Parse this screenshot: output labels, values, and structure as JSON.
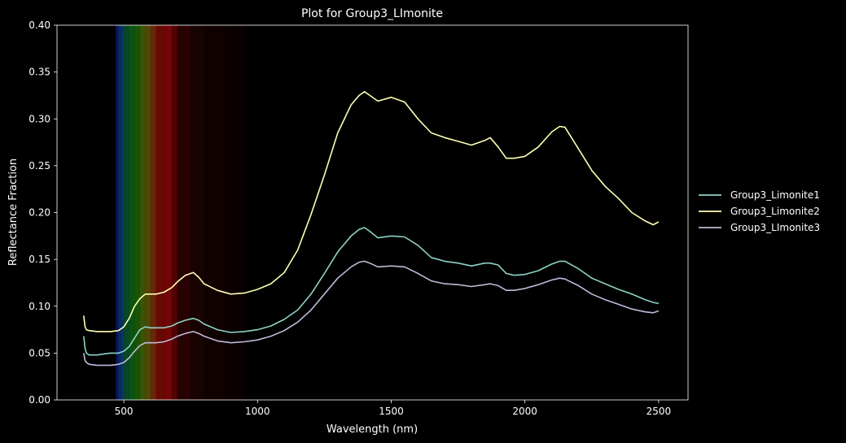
{
  "chart_data": {
    "type": "line",
    "title": "Plot for Group3_LImonite",
    "xlabel": "Wavelength (nm)",
    "ylabel": "Reflectance Fraction",
    "xlim": [
      250,
      2610
    ],
    "ylim": [
      0,
      0.4
    ],
    "xticks": [
      500,
      1000,
      1500,
      2000,
      2500
    ],
    "yticks": [
      0.0,
      0.05,
      0.1,
      0.15,
      0.2,
      0.25,
      0.3,
      0.35,
      0.4
    ],
    "grid": false,
    "legend_position": "right-outside",
    "background": "#000000",
    "spectrum_band": {
      "range_nm": [
        470,
        950
      ],
      "visible": true
    },
    "series": [
      {
        "name": "Group3_Limonite1",
        "color": "#8dd3c7",
        "x": [
          350,
          355,
          360,
          370,
          400,
          450,
          480,
          500,
          520,
          540,
          560,
          580,
          600,
          620,
          650,
          680,
          700,
          730,
          760,
          780,
          800,
          850,
          900,
          950,
          1000,
          1050,
          1100,
          1150,
          1200,
          1250,
          1300,
          1350,
          1380,
          1400,
          1420,
          1450,
          1500,
          1550,
          1600,
          1650,
          1700,
          1750,
          1800,
          1850,
          1870,
          1900,
          1930,
          1960,
          2000,
          2050,
          2100,
          2130,
          2150,
          2200,
          2250,
          2300,
          2350,
          2400,
          2450,
          2480,
          2500
        ],
        "values": [
          0.068,
          0.055,
          0.05,
          0.048,
          0.048,
          0.05,
          0.05,
          0.052,
          0.057,
          0.066,
          0.075,
          0.078,
          0.077,
          0.077,
          0.077,
          0.079,
          0.082,
          0.085,
          0.087,
          0.085,
          0.081,
          0.075,
          0.072,
          0.073,
          0.075,
          0.079,
          0.086,
          0.096,
          0.113,
          0.135,
          0.158,
          0.175,
          0.182,
          0.184,
          0.18,
          0.173,
          0.175,
          0.174,
          0.165,
          0.152,
          0.148,
          0.146,
          0.143,
          0.146,
          0.146,
          0.144,
          0.135,
          0.133,
          0.134,
          0.138,
          0.145,
          0.148,
          0.148,
          0.14,
          0.13,
          0.124,
          0.118,
          0.113,
          0.107,
          0.104,
          0.103
        ]
      },
      {
        "name": "Group3_Limonite2",
        "color": "#ffffb3",
        "x": [
          350,
          355,
          360,
          370,
          400,
          450,
          480,
          500,
          520,
          540,
          560,
          580,
          600,
          620,
          650,
          680,
          700,
          730,
          760,
          780,
          800,
          850,
          900,
          950,
          1000,
          1050,
          1100,
          1150,
          1200,
          1250,
          1300,
          1350,
          1380,
          1400,
          1420,
          1450,
          1500,
          1550,
          1600,
          1650,
          1700,
          1750,
          1800,
          1850,
          1870,
          1900,
          1930,
          1960,
          2000,
          2050,
          2100,
          2130,
          2150,
          2200,
          2250,
          2300,
          2350,
          2400,
          2450,
          2480,
          2500
        ],
        "values": [
          0.09,
          0.078,
          0.075,
          0.074,
          0.073,
          0.073,
          0.074,
          0.078,
          0.087,
          0.1,
          0.108,
          0.113,
          0.113,
          0.113,
          0.115,
          0.12,
          0.126,
          0.133,
          0.136,
          0.131,
          0.124,
          0.117,
          0.113,
          0.114,
          0.118,
          0.124,
          0.136,
          0.16,
          0.198,
          0.24,
          0.285,
          0.315,
          0.325,
          0.329,
          0.325,
          0.319,
          0.323,
          0.318,
          0.3,
          0.285,
          0.28,
          0.276,
          0.272,
          0.277,
          0.28,
          0.27,
          0.258,
          0.258,
          0.26,
          0.27,
          0.286,
          0.292,
          0.291,
          0.268,
          0.245,
          0.228,
          0.215,
          0.2,
          0.191,
          0.187,
          0.19
        ]
      },
      {
        "name": "Group3_LImonite3",
        "color": "#bebada",
        "x": [
          350,
          355,
          360,
          370,
          400,
          450,
          480,
          500,
          520,
          540,
          560,
          580,
          600,
          620,
          650,
          680,
          700,
          730,
          760,
          780,
          800,
          850,
          900,
          950,
          1000,
          1050,
          1100,
          1150,
          1200,
          1250,
          1300,
          1350,
          1380,
          1400,
          1420,
          1450,
          1500,
          1550,
          1600,
          1650,
          1700,
          1750,
          1800,
          1850,
          1870,
          1900,
          1930,
          1960,
          2000,
          2050,
          2100,
          2130,
          2150,
          2200,
          2250,
          2300,
          2350,
          2400,
          2450,
          2480,
          2500
        ],
        "values": [
          0.05,
          0.042,
          0.04,
          0.038,
          0.037,
          0.037,
          0.038,
          0.04,
          0.045,
          0.052,
          0.058,
          0.061,
          0.061,
          0.061,
          0.062,
          0.065,
          0.068,
          0.071,
          0.073,
          0.071,
          0.068,
          0.063,
          0.061,
          0.062,
          0.064,
          0.068,
          0.074,
          0.083,
          0.096,
          0.113,
          0.13,
          0.142,
          0.147,
          0.148,
          0.146,
          0.142,
          0.143,
          0.142,
          0.135,
          0.127,
          0.124,
          0.123,
          0.121,
          0.123,
          0.124,
          0.122,
          0.117,
          0.117,
          0.119,
          0.123,
          0.128,
          0.13,
          0.129,
          0.122,
          0.113,
          0.107,
          0.102,
          0.097,
          0.094,
          0.093,
          0.095
        ]
      }
    ]
  }
}
